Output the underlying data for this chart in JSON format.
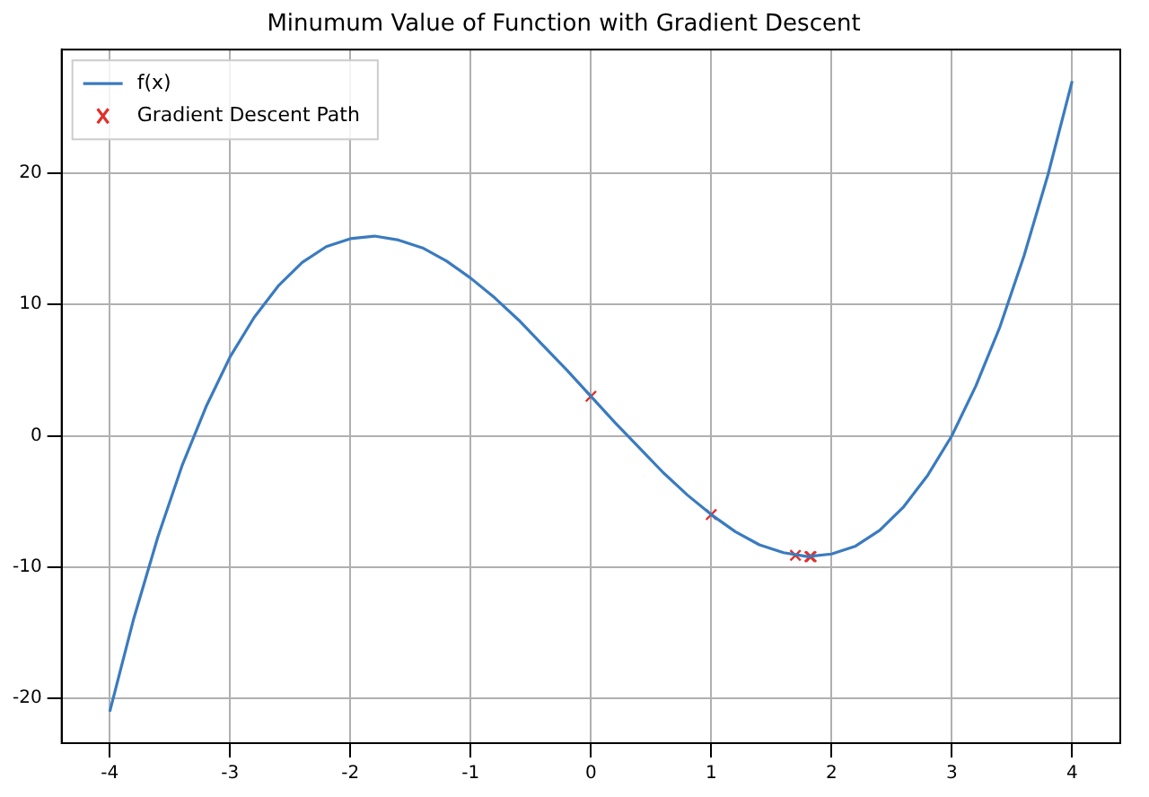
{
  "chart_data": {
    "type": "line",
    "title": "Minumum Value of Function with Gradient Descent",
    "series": [
      {
        "name": "f(x)",
        "type": "line",
        "color": "#3a7bbf",
        "marker": "none",
        "x": [
          -4,
          -3.8,
          -3.6,
          -3.4,
          -3.2,
          -3,
          -2.8,
          -2.6,
          -2.4,
          -2.2,
          -2,
          -1.8,
          -1.6,
          -1.4,
          -1.2,
          -1,
          -0.8,
          -0.6,
          -0.4,
          -0.2,
          0,
          0.2,
          0.4,
          0.6,
          0.8,
          1,
          1.2,
          1.4,
          1.6,
          1.8,
          2,
          2.2,
          2.4,
          2.6,
          2.8,
          3,
          3.2,
          3.4,
          3.6,
          3.8,
          4
        ],
        "values": [
          -21,
          -13.9,
          -7.7,
          -2.3,
          2.2,
          6,
          9,
          11.4,
          13.2,
          14.4,
          15,
          15.2,
          14.9,
          14.3,
          13.3,
          12,
          10.5,
          8.8,
          6.9,
          5,
          3,
          1,
          -0.9,
          -2.8,
          -4.5,
          -6,
          -7.3,
          -8.3,
          -8.9,
          -9.2,
          -9,
          -8.4,
          -7.2,
          -5.4,
          -3,
          0,
          3.8,
          8.3,
          13.7,
          19.9,
          27
        ]
      },
      {
        "name": "Gradient Descent Path",
        "type": "scatter",
        "color": "#e0302a",
        "marker": "cross",
        "x": [
          0,
          1,
          1.7,
          1.82,
          1.83
        ],
        "values": [
          3,
          -6,
          -9.1,
          -9.2,
          -9.2
        ]
      }
    ],
    "xlim": [
      -4.4,
      4.4
    ],
    "xticks": [
      -4,
      -3,
      -2,
      -1,
      0,
      1,
      2,
      3,
      4
    ],
    "ylim": [
      -23.4,
      29.4
    ],
    "yticks": [
      -20,
      -10,
      0,
      10,
      20
    ],
    "grid": true,
    "legend": "top left"
  }
}
